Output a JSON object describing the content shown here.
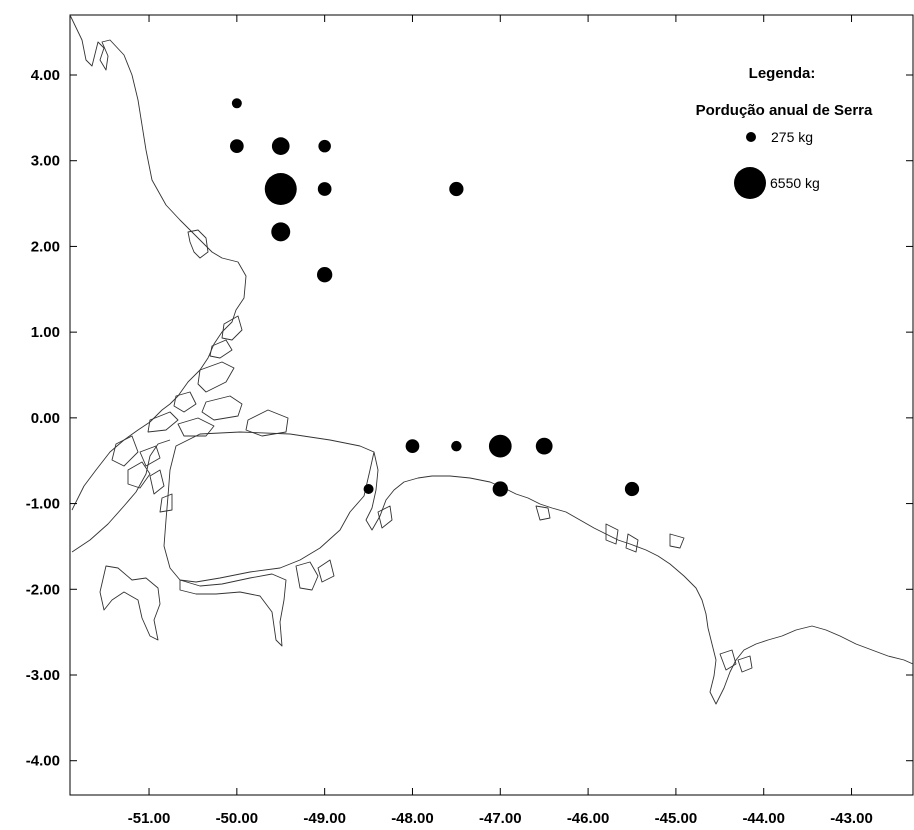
{
  "map": {
    "x_ticks": [
      {
        "value": -51,
        "label": "-51.00"
      },
      {
        "value": -50,
        "label": "-50.00"
      },
      {
        "value": -49,
        "label": "-49.00"
      },
      {
        "value": -48,
        "label": "-48.00"
      },
      {
        "value": -47,
        "label": "-47.00"
      },
      {
        "value": -46,
        "label": "-46.00"
      },
      {
        "value": -45,
        "label": "-45.00"
      },
      {
        "value": -44,
        "label": "-44.00"
      },
      {
        "value": -43,
        "label": "-43.00"
      }
    ],
    "y_ticks": [
      {
        "value": 4,
        "label": "4.00"
      },
      {
        "value": 3,
        "label": "3.00"
      },
      {
        "value": 2,
        "label": "2.00"
      },
      {
        "value": 1,
        "label": "1.00"
      },
      {
        "value": 0,
        "label": "0.00"
      },
      {
        "value": -1,
        "label": "-1.00"
      },
      {
        "value": -2,
        "label": "-2.00"
      },
      {
        "value": -3,
        "label": "-3.00"
      },
      {
        "value": -4,
        "label": "-4.00"
      }
    ],
    "xlim": [
      -51.9,
      -42.3
    ],
    "ylim": [
      -4.4,
      4.7
    ],
    "legend": {
      "heading": "Legenda:",
      "title": "Pordução anual de Serra",
      "placement": "top-right",
      "items": [
        {
          "label": "275 kg",
          "value": 275
        },
        {
          "label": "6550 kg",
          "value": 6550
        }
      ]
    },
    "point_color": "#000000",
    "coastline_color": "#333333"
  },
  "chart_data": {
    "type": "scatter",
    "subtype": "proportional-symbol map",
    "xlabel": "",
    "ylabel": "",
    "xlim": [
      -51.9,
      -42.3
    ],
    "ylim": [
      -4.4,
      4.7
    ],
    "grid": false,
    "size_unit": "kg",
    "points": [
      {
        "x": -50.0,
        "y": 3.67,
        "value": 275
      },
      {
        "x": -50.0,
        "y": 3.17,
        "value": 1200
      },
      {
        "x": -49.5,
        "y": 3.17,
        "value": 2000
      },
      {
        "x": -49.0,
        "y": 3.17,
        "value": 1000
      },
      {
        "x": -49.5,
        "y": 2.67,
        "value": 6550
      },
      {
        "x": -49.0,
        "y": 2.67,
        "value": 1200
      },
      {
        "x": -47.5,
        "y": 2.67,
        "value": 1300
      },
      {
        "x": -49.5,
        "y": 2.17,
        "value": 2300
      },
      {
        "x": -49.0,
        "y": 1.67,
        "value": 1500
      },
      {
        "x": -48.0,
        "y": -0.33,
        "value": 1200
      },
      {
        "x": -47.5,
        "y": -0.33,
        "value": 700
      },
      {
        "x": -47.0,
        "y": -0.33,
        "value": 3300
      },
      {
        "x": -46.5,
        "y": -0.33,
        "value": 1800
      },
      {
        "x": -48.5,
        "y": -0.83,
        "value": 500
      },
      {
        "x": -47.0,
        "y": -0.83,
        "value": 1500
      },
      {
        "x": -45.5,
        "y": -0.83,
        "value": 1300
      }
    ]
  }
}
